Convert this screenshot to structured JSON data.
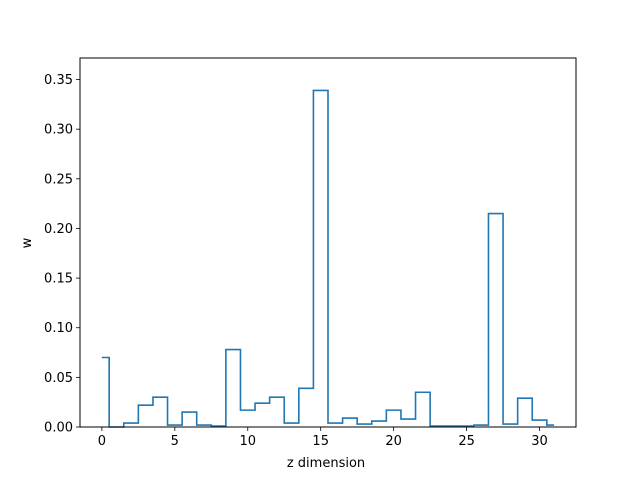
{
  "chart_data": {
    "type": "line",
    "style": "step-histogram",
    "title": "",
    "xlabel": "z dimension",
    "ylabel": "w",
    "xlim": [
      -1.5,
      32.5
    ],
    "ylim": [
      0,
      0.3717
    ],
    "xticks": [
      0,
      5,
      10,
      15,
      20,
      25,
      30
    ],
    "yticks": [
      0.0,
      0.05,
      0.1,
      0.15,
      0.2,
      0.25,
      0.3,
      0.35
    ],
    "ytick_labels": [
      "0.00",
      "0.05",
      "0.10",
      "0.15",
      "0.20",
      "0.25",
      "0.30",
      "0.35"
    ],
    "grid": false,
    "color": "#1f77b4",
    "x": [
      0,
      1,
      2,
      3,
      4,
      5,
      6,
      7,
      8,
      9,
      10,
      11,
      12,
      13,
      14,
      15,
      16,
      17,
      18,
      19,
      20,
      21,
      22,
      23,
      24,
      25,
      26,
      27,
      28,
      29,
      30,
      31
    ],
    "values": [
      0.07,
      0.0,
      0.004,
      0.022,
      0.03,
      0.002,
      0.015,
      0.002,
      0.001,
      0.078,
      0.017,
      0.024,
      0.03,
      0.004,
      0.039,
      0.339,
      0.004,
      0.009,
      0.003,
      0.006,
      0.017,
      0.008,
      0.035,
      0.001,
      0.001,
      0.001,
      0.002,
      0.215,
      0.003,
      0.029,
      0.007,
      0.002
    ]
  }
}
